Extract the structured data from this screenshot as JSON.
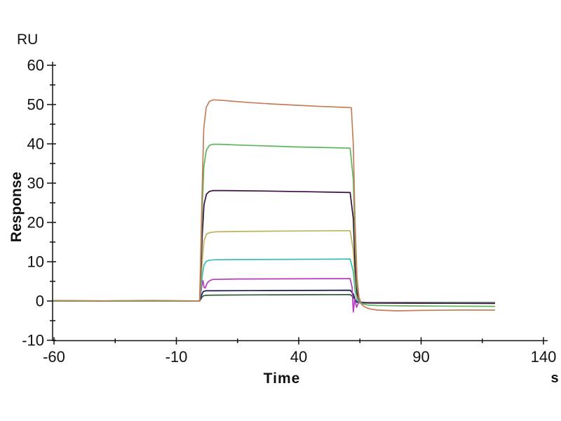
{
  "labels": {
    "y_unit": "RU",
    "y_title": "Response",
    "x_title": "Time",
    "x_unit": "s"
  },
  "chart_data": {
    "type": "line",
    "title": "",
    "xlabel": "Time",
    "x_unit": "s",
    "ylabel": "Response",
    "y_unit": "RU",
    "xlim": [
      -60,
      140
    ],
    "ylim": [
      -10,
      60
    ],
    "x_major_ticks": [
      -60,
      -10,
      40,
      90,
      140
    ],
    "x_minor_ticks": [
      -35,
      15,
      65,
      115
    ],
    "y_major_ticks": [
      60,
      50,
      40,
      30,
      20,
      10,
      0,
      -10
    ],
    "y_minor_ticks": [
      55,
      45,
      35,
      25,
      15,
      5,
      -5
    ],
    "grid": false,
    "legend_position": "none",
    "axis_color": "#111111",
    "injection_start_s": 0,
    "injection_end_s": 62,
    "series": [
      {
        "name": "dark-green",
        "color": "#2C5F34",
        "plateau_ru": 1.6,
        "points": [
          [
            -60,
            0
          ],
          [
            -30,
            0
          ],
          [
            -10,
            0
          ],
          [
            -0.5,
            0
          ],
          [
            0.5,
            1.0
          ],
          [
            1,
            1.3
          ],
          [
            2,
            1.45
          ],
          [
            5,
            1.5
          ],
          [
            20,
            1.55
          ],
          [
            45,
            1.6
          ],
          [
            61,
            1.65
          ],
          [
            62.3,
            1.0
          ],
          [
            63,
            0.2
          ],
          [
            63.8,
            -0.25
          ],
          [
            65,
            -0.35
          ],
          [
            68,
            -0.4
          ],
          [
            90,
            -0.4
          ],
          [
            120,
            -0.4
          ]
        ]
      },
      {
        "name": "navy",
        "color": "#1A1A52",
        "plateau_ru": 2.7,
        "points": [
          [
            -60,
            0
          ],
          [
            -30,
            0
          ],
          [
            -10,
            0
          ],
          [
            -0.5,
            0
          ],
          [
            0.5,
            1.8
          ],
          [
            1,
            2.4
          ],
          [
            2,
            2.6
          ],
          [
            5,
            2.6
          ],
          [
            20,
            2.65
          ],
          [
            45,
            2.7
          ],
          [
            61,
            2.75
          ],
          [
            62.3,
            1.8
          ],
          [
            63,
            0.4
          ],
          [
            63.8,
            -0.3
          ],
          [
            65,
            -0.45
          ],
          [
            68,
            -0.5
          ],
          [
            90,
            -0.5
          ],
          [
            120,
            -0.5
          ]
        ]
      },
      {
        "name": "magenta",
        "color": "#B93BB9",
        "plateau_ru": 5.7,
        "points": [
          [
            -60,
            0
          ],
          [
            -30,
            0
          ],
          [
            -10,
            0
          ],
          [
            -0.5,
            0
          ],
          [
            0.5,
            4.2
          ],
          [
            0.9,
            5.2
          ],
          [
            1.3,
            3.5
          ],
          [
            1.8,
            3.3
          ],
          [
            2.6,
            4.6
          ],
          [
            3.6,
            5.2
          ],
          [
            5,
            5.5
          ],
          [
            15,
            5.6
          ],
          [
            35,
            5.65
          ],
          [
            55,
            5.7
          ],
          [
            61,
            5.7
          ],
          [
            61.8,
            3.5
          ],
          [
            62.3,
            -2.8
          ],
          [
            62.9,
            0.6
          ],
          [
            63.6,
            -1.6
          ],
          [
            64.5,
            -0.3
          ],
          [
            65.5,
            -0.6
          ],
          [
            68,
            -0.45
          ],
          [
            90,
            -0.5
          ],
          [
            120,
            -0.5
          ]
        ]
      },
      {
        "name": "cyan",
        "color": "#3BBDB3",
        "plateau_ru": 10.6,
        "points": [
          [
            -60,
            0
          ],
          [
            -30,
            0
          ],
          [
            -10,
            0
          ],
          [
            -0.5,
            0
          ],
          [
            0.6,
            6.5
          ],
          [
            1.3,
            9.2
          ],
          [
            2.3,
            10.1
          ],
          [
            3.5,
            10.4
          ],
          [
            6,
            10.5
          ],
          [
            15,
            10.55
          ],
          [
            35,
            10.6
          ],
          [
            55,
            10.65
          ],
          [
            61,
            10.7
          ],
          [
            62.3,
            7.5
          ],
          [
            63,
            2.5
          ],
          [
            63.8,
            0.2
          ],
          [
            64.8,
            -0.3
          ],
          [
            66,
            -0.45
          ],
          [
            69,
            -0.5
          ],
          [
            90,
            -0.5
          ],
          [
            120,
            -0.5
          ]
        ]
      },
      {
        "name": "gold",
        "color": "#BEB35A",
        "plateau_ru": 17.8,
        "points": [
          [
            -60,
            0
          ],
          [
            -30,
            0
          ],
          [
            -10,
            0
          ],
          [
            -0.5,
            0
          ],
          [
            0.6,
            10.5
          ],
          [
            1.3,
            15.3
          ],
          [
            2.3,
            17.0
          ],
          [
            3.5,
            17.4
          ],
          [
            6,
            17.6
          ],
          [
            15,
            17.7
          ],
          [
            35,
            17.8
          ],
          [
            55,
            17.9
          ],
          [
            61,
            17.9
          ],
          [
            62.3,
            13
          ],
          [
            63,
            5
          ],
          [
            63.8,
            0.8
          ],
          [
            64.8,
            -0.2
          ],
          [
            66,
            -0.4
          ],
          [
            69,
            -0.5
          ],
          [
            90,
            -0.55
          ],
          [
            120,
            -0.55
          ]
        ]
      },
      {
        "name": "dark-purple",
        "color": "#3A0C40",
        "plateau_ru": 27.9,
        "points": [
          [
            -60,
            0
          ],
          [
            -30,
            0
          ],
          [
            -10,
            0
          ],
          [
            -0.5,
            0
          ],
          [
            0.6,
            17
          ],
          [
            1.3,
            24.5
          ],
          [
            2.3,
            27.2
          ],
          [
            3.5,
            27.9
          ],
          [
            5,
            28.1
          ],
          [
            10,
            28.1
          ],
          [
            25,
            28.0
          ],
          [
            45,
            27.8
          ],
          [
            61,
            27.6
          ],
          [
            62.3,
            21
          ],
          [
            63,
            9
          ],
          [
            63.8,
            2
          ],
          [
            64.8,
            -0.1
          ],
          [
            66,
            -0.4
          ],
          [
            69,
            -0.5
          ],
          [
            90,
            -0.55
          ],
          [
            120,
            -0.6
          ]
        ]
      },
      {
        "name": "green",
        "color": "#5BB55B",
        "plateau_ru": 39.5,
        "points": [
          [
            -60,
            0
          ],
          [
            -30,
            0
          ],
          [
            -10,
            0
          ],
          [
            -0.5,
            0
          ],
          [
            0.6,
            24
          ],
          [
            1.2,
            34
          ],
          [
            2.2,
            38.3
          ],
          [
            3.5,
            39.6
          ],
          [
            5,
            39.9
          ],
          [
            8,
            39.9
          ],
          [
            15,
            39.7
          ],
          [
            25,
            39.5
          ],
          [
            40,
            39.2
          ],
          [
            55,
            39.0
          ],
          [
            61,
            38.9
          ],
          [
            62.3,
            31
          ],
          [
            63,
            15
          ],
          [
            63.8,
            4
          ],
          [
            64.8,
            0
          ],
          [
            66,
            -0.7
          ],
          [
            68,
            -1.0
          ],
          [
            72,
            -1.15
          ],
          [
            85,
            -1.25
          ],
          [
            100,
            -1.3
          ],
          [
            120,
            -1.35
          ]
        ]
      },
      {
        "name": "salmon",
        "color": "#C37E5A",
        "plateau_ru": 50.5,
        "points": [
          [
            -60,
            0.15
          ],
          [
            -40,
            0.05
          ],
          [
            -20,
            0.15
          ],
          [
            -5,
            0.05
          ],
          [
            -0.5,
            0
          ],
          [
            0.6,
            30
          ],
          [
            1.2,
            44
          ],
          [
            2.2,
            49.3
          ],
          [
            3.5,
            50.8
          ],
          [
            5,
            51.2
          ],
          [
            8,
            51.1
          ],
          [
            12,
            50.9
          ],
          [
            20,
            50.5
          ],
          [
            30,
            50.1
          ],
          [
            40,
            49.8
          ],
          [
            50,
            49.5
          ],
          [
            58,
            49.3
          ],
          [
            61.5,
            49.2
          ],
          [
            62.3,
            40
          ],
          [
            63,
            20
          ],
          [
            63.8,
            6
          ],
          [
            64.6,
            1
          ],
          [
            65.6,
            -0.8
          ],
          [
            67,
            -1.5
          ],
          [
            69,
            -2.0
          ],
          [
            72,
            -2.3
          ],
          [
            80,
            -2.5
          ],
          [
            90,
            -2.4
          ],
          [
            105,
            -2.3
          ],
          [
            120,
            -2.3
          ]
        ]
      }
    ]
  }
}
